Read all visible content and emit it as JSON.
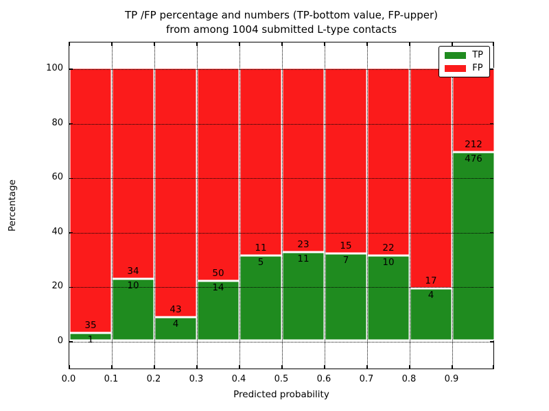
{
  "chart": {
    "title_line1": "TP /FP percentage and numbers (TP-bottom value, FP-upper)",
    "title_line2": "from among 1004 submitted L-type contacts",
    "xlabel": "Predicted probability",
    "ylabel": "Percentage"
  },
  "chart_data": {
    "type": "bar",
    "stacked": true,
    "normalized": "each bar stacks to 100%",
    "title": "TP /FP percentage and numbers (TP-bottom value, FP-upper) from among 1004 submitted L-type contacts",
    "xlabel": "Predicted probability",
    "ylabel": "Percentage",
    "x_bin_edges": [
      0.0,
      0.1,
      0.2,
      0.3,
      0.4,
      0.5,
      0.6,
      0.7,
      0.8,
      0.9,
      1.0
    ],
    "x_tick_labels": [
      "0.0",
      "0.1",
      "0.2",
      "0.3",
      "0.4",
      "0.5",
      "0.6",
      "0.7",
      "0.8",
      "0.9"
    ],
    "y_tick_values": [
      0,
      20,
      40,
      60,
      80,
      100
    ],
    "y_tick_labels": [
      "0",
      "20",
      "40",
      "60",
      "80",
      "100"
    ],
    "ylim": [
      -10.3,
      109.8
    ],
    "grid": "dotted, drawn above bars",
    "legend_position": "upper right",
    "series": [
      {
        "name": "TP",
        "color": "#1f8b1f",
        "counts": [
          1,
          10,
          4,
          14,
          5,
          11,
          7,
          10,
          4,
          476
        ]
      },
      {
        "name": "FP",
        "color": "#fb1b1b",
        "counts": [
          35,
          34,
          43,
          50,
          11,
          23,
          15,
          22,
          17,
          212
        ]
      }
    ],
    "tp_percent_of_bar": [
      2.78,
      22.73,
      8.51,
      21.88,
      31.25,
      32.35,
      31.82,
      31.25,
      19.05,
      69.19
    ],
    "total_contacts_shown_in_title": 1004
  },
  "legend": {
    "items": [
      {
        "label": "TP",
        "color": "#1f8b1f"
      },
      {
        "label": "FP",
        "color": "#fb1b1b"
      }
    ]
  }
}
